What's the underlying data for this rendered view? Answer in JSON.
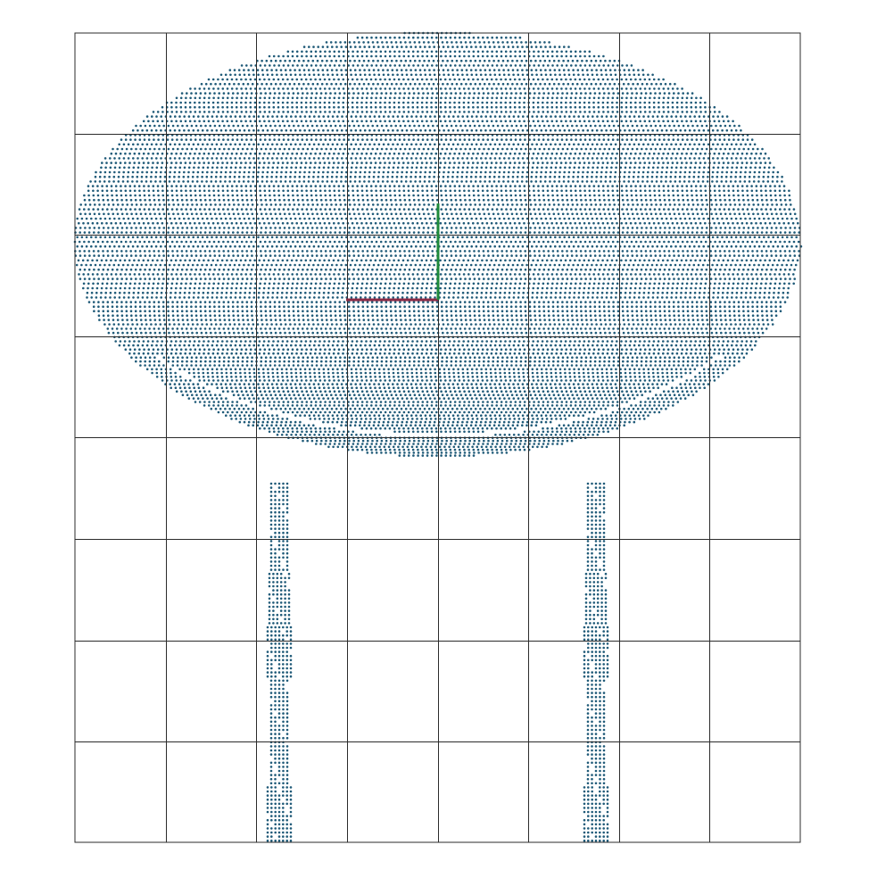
{
  "view": {
    "type": "point-cloud-top-view",
    "grid": {
      "columns": 8,
      "rows": 8
    },
    "background": "#ffffff"
  },
  "colors": {
    "points": "#1f5a78",
    "grid": "#2b2b2b",
    "axis_x": "#8b2a45",
    "axis_y": "#1e8a3a"
  },
  "objects": [
    {
      "name": "table-top",
      "shape": "ellipse",
      "description_units": "grid cells"
    },
    {
      "name": "left-leg",
      "shape": "vertical-strip"
    },
    {
      "name": "right-leg",
      "shape": "vertical-strip"
    }
  ],
  "axes": [
    {
      "name": "x-axis",
      "color": "axis_x"
    },
    {
      "name": "y-axis",
      "color": "axis_y"
    }
  ]
}
